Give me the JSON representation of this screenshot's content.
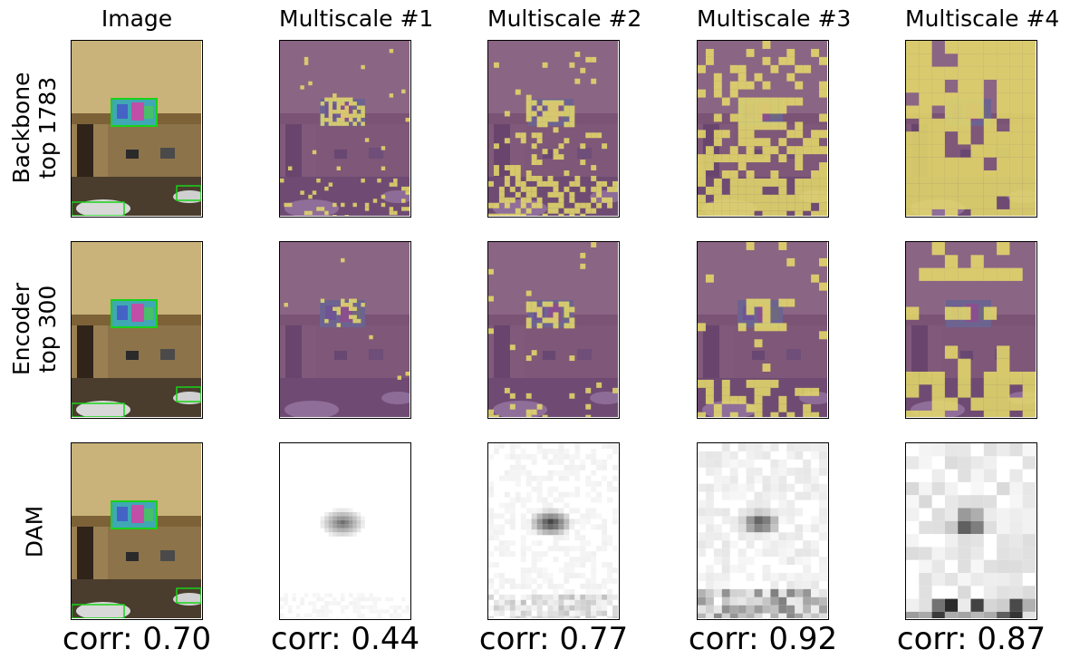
{
  "columns": [
    "Image",
    "Multiscale #1",
    "Multiscale #2",
    "Multiscale #3",
    "Multiscale #4"
  ],
  "rows": [
    "Backbone\ntop 1783",
    "Encoder\ntop 300",
    "DAM"
  ],
  "correlations": [
    "corr: 0.70",
    "corr: 0.44",
    "corr: 0.77",
    "corr: 0.92",
    "corr: 0.87"
  ],
  "colors": {
    "overlay_purple": "#7a4f86",
    "overlay_yellow": "#e6dc6a",
    "box_green": "#19d219",
    "heat_dark": "#000000"
  }
}
